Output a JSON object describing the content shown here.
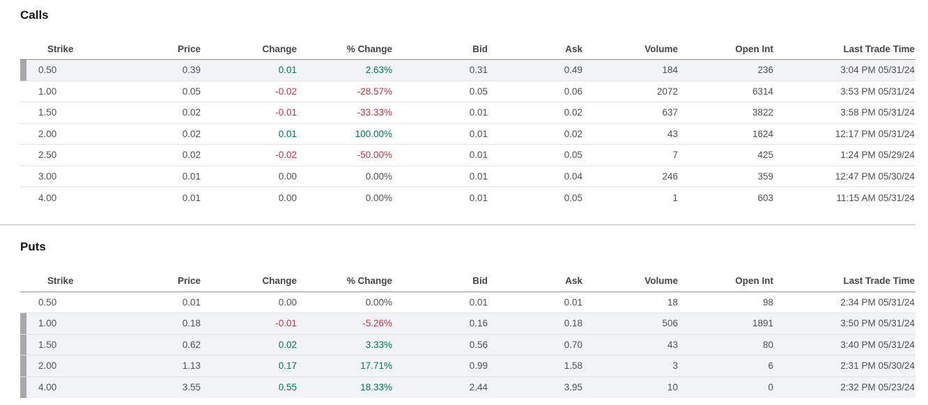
{
  "colors": {
    "green": "#00764b",
    "red": "#b23844",
    "row-highlight": "#f2f3f7",
    "marker": "#a8a8a8",
    "row-border": "#e2e2e2",
    "header-border": "#919191",
    "divider": "#d8d8d8"
  },
  "columns": [
    "Strike",
    "Price",
    "Change",
    "% Change",
    "Bid",
    "Ask",
    "Volume",
    "Open Int",
    "Last Trade Time"
  ],
  "calls": {
    "title": "Calls",
    "rows": [
      {
        "strike": "0.50",
        "price": "0.39",
        "change": "0.01",
        "pct_change": "2.63%",
        "bid": "0.31",
        "ask": "0.49",
        "volume": "184",
        "open_int": "236",
        "last_trade_time": "3:04 PM 05/31/24",
        "direction": "up",
        "highlighted": true
      },
      {
        "strike": "1.00",
        "price": "0.05",
        "change": "-0.02",
        "pct_change": "-28.57%",
        "bid": "0.05",
        "ask": "0.06",
        "volume": "2072",
        "open_int": "6314",
        "last_trade_time": "3:53 PM 05/31/24",
        "direction": "down",
        "highlighted": false
      },
      {
        "strike": "1.50",
        "price": "0.02",
        "change": "-0.01",
        "pct_change": "-33.33%",
        "bid": "0.01",
        "ask": "0.02",
        "volume": "637",
        "open_int": "3822",
        "last_trade_time": "3:58 PM 05/31/24",
        "direction": "down",
        "highlighted": false
      },
      {
        "strike": "2.00",
        "price": "0.02",
        "change": "0.01",
        "pct_change": "100.00%",
        "bid": "0.01",
        "ask": "0.02",
        "volume": "43",
        "open_int": "1624",
        "last_trade_time": "12:17 PM 05/31/24",
        "direction": "up",
        "highlighted": false
      },
      {
        "strike": "2.50",
        "price": "0.02",
        "change": "-0.02",
        "pct_change": "-50.00%",
        "bid": "0.01",
        "ask": "0.05",
        "volume": "7",
        "open_int": "425",
        "last_trade_time": "1:24 PM 05/29/24",
        "direction": "down",
        "highlighted": false
      },
      {
        "strike": "3.00",
        "price": "0.01",
        "change": "0.00",
        "pct_change": "0.00%",
        "bid": "0.01",
        "ask": "0.04",
        "volume": "246",
        "open_int": "359",
        "last_trade_time": "12:47 PM 05/30/24",
        "direction": "flat",
        "highlighted": false
      },
      {
        "strike": "4.00",
        "price": "0.01",
        "change": "0.00",
        "pct_change": "0.00%",
        "bid": "0.01",
        "ask": "0.05",
        "volume": "1",
        "open_int": "603",
        "last_trade_time": "11:15 AM 05/31/24",
        "direction": "flat",
        "highlighted": false
      }
    ]
  },
  "puts": {
    "title": "Puts",
    "rows": [
      {
        "strike": "0.50",
        "price": "0.01",
        "change": "0.00",
        "pct_change": "0.00%",
        "bid": "0.01",
        "ask": "0.01",
        "volume": "18",
        "open_int": "98",
        "last_trade_time": "2:34 PM 05/31/24",
        "direction": "flat",
        "highlighted": false
      },
      {
        "strike": "1.00",
        "price": "0.18",
        "change": "-0.01",
        "pct_change": "-5.26%",
        "bid": "0.16",
        "ask": "0.18",
        "volume": "506",
        "open_int": "1891",
        "last_trade_time": "3:50 PM 05/31/24",
        "direction": "down",
        "highlighted": true
      },
      {
        "strike": "1.50",
        "price": "0.62",
        "change": "0.02",
        "pct_change": "3.33%",
        "bid": "0.56",
        "ask": "0.70",
        "volume": "43",
        "open_int": "80",
        "last_trade_time": "3:40 PM 05/31/24",
        "direction": "up",
        "highlighted": true
      },
      {
        "strike": "2.00",
        "price": "1.13",
        "change": "0.17",
        "pct_change": "17.71%",
        "bid": "0.99",
        "ask": "1.58",
        "volume": "3",
        "open_int": "6",
        "last_trade_time": "2:31 PM 05/30/24",
        "direction": "up",
        "highlighted": true
      },
      {
        "strike": "4.00",
        "price": "3.55",
        "change": "0.55",
        "pct_change": "18.33%",
        "bid": "2.44",
        "ask": "3.95",
        "volume": "10",
        "open_int": "0",
        "last_trade_time": "2:32 PM 05/23/24",
        "direction": "up",
        "highlighted": true
      }
    ]
  }
}
